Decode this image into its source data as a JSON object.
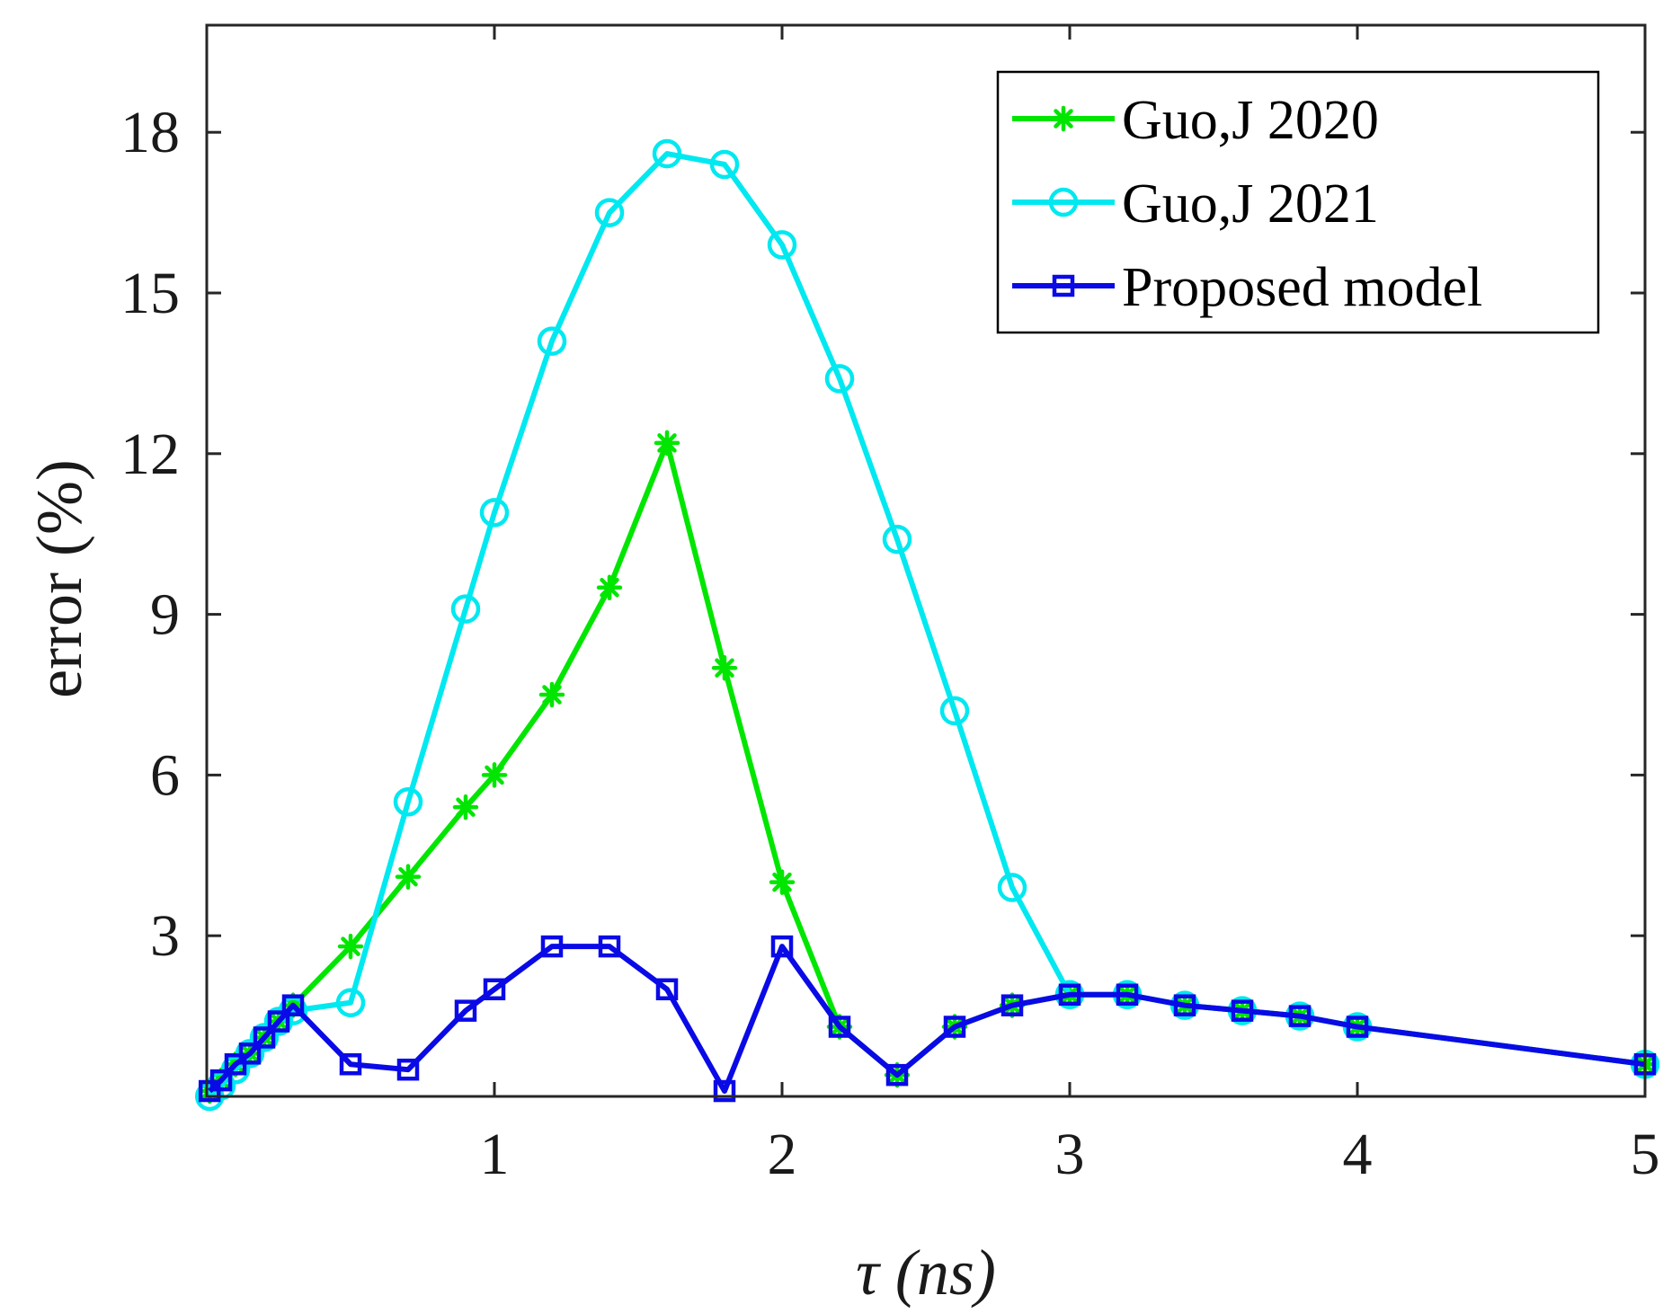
{
  "chart_data": {
    "type": "line",
    "title": "",
    "xlabel": "τ (ns)",
    "ylabel": "error (%)",
    "xlim": [
      0,
      5
    ],
    "ylim": [
      0,
      20
    ],
    "xticks": [
      1,
      2,
      3,
      4,
      5
    ],
    "xtick_labels": [
      "1",
      "2",
      "3",
      "4",
      "5"
    ],
    "yticks": [
      3,
      6,
      9,
      12,
      15,
      18
    ],
    "ytick_labels": [
      "3",
      "6",
      "9",
      "12",
      "15",
      "18"
    ],
    "grid": false,
    "legend_position": "top-right",
    "series": [
      {
        "name": "Guo,J 2020",
        "color": "#00e600",
        "marker": "asterisk",
        "x": [
          0.01,
          0.05,
          0.1,
          0.15,
          0.2,
          0.25,
          0.3,
          0.5,
          0.7,
          0.9,
          1.0,
          1.2,
          1.4,
          1.6,
          1.8,
          2.0,
          2.2,
          2.4,
          2.6,
          2.8,
          3.0,
          3.2,
          3.4,
          3.6,
          3.8,
          4.0,
          5.0
        ],
        "y": [
          0.1,
          0.3,
          0.6,
          0.8,
          1.1,
          1.4,
          1.7,
          2.8,
          4.1,
          5.4,
          6.0,
          7.5,
          9.5,
          12.2,
          8.0,
          4.0,
          1.3,
          0.4,
          1.3,
          1.7,
          1.9,
          1.9,
          1.7,
          1.6,
          1.5,
          1.3,
          0.6
        ]
      },
      {
        "name": "Guo,J 2021",
        "color": "#00e8f0",
        "marker": "circle",
        "x": [
          0.01,
          0.05,
          0.1,
          0.15,
          0.2,
          0.25,
          0.3,
          0.5,
          0.7,
          0.9,
          1.0,
          1.2,
          1.4,
          1.6,
          1.8,
          2.0,
          2.2,
          2.4,
          2.6,
          2.8,
          3.0,
          3.2,
          3.4,
          3.6,
          3.8,
          4.0,
          5.0
        ],
        "y": [
          0.0,
          0.2,
          0.5,
          0.8,
          1.1,
          1.4,
          1.6,
          1.75,
          5.5,
          9.1,
          10.9,
          14.1,
          16.5,
          17.6,
          17.4,
          15.9,
          13.4,
          10.4,
          7.2,
          3.9,
          1.9,
          1.9,
          1.7,
          1.6,
          1.5,
          1.3,
          0.6
        ]
      },
      {
        "name": "Proposed model",
        "color": "#0a0ae6",
        "marker": "square",
        "x": [
          0.01,
          0.05,
          0.1,
          0.15,
          0.2,
          0.25,
          0.3,
          0.5,
          0.7,
          0.9,
          1.0,
          1.2,
          1.4,
          1.6,
          1.8,
          2.0,
          2.2,
          2.4,
          2.6,
          2.8,
          3.0,
          3.2,
          3.4,
          3.6,
          3.8,
          4.0,
          5.0
        ],
        "y": [
          0.1,
          0.3,
          0.6,
          0.8,
          1.1,
          1.4,
          1.7,
          0.6,
          0.5,
          1.6,
          2.0,
          2.8,
          2.8,
          2.0,
          0.1,
          2.8,
          1.3,
          0.4,
          1.3,
          1.7,
          1.9,
          1.9,
          1.7,
          1.6,
          1.5,
          1.3,
          0.6
        ]
      }
    ]
  }
}
